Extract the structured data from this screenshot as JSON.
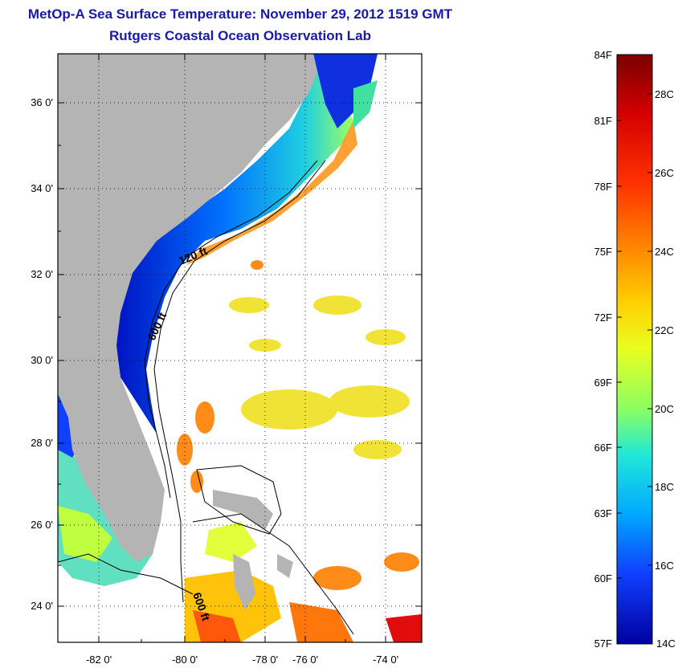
{
  "title": {
    "line1": "MetOp-A Sea Surface Temperature:  November 29, 2012 1519 GMT",
    "line2": "Rutgers Coastal Ocean Observation Lab"
  },
  "map": {
    "lat_ticks": [
      "36 0'",
      "34 0'",
      "32 0'",
      "30 0'",
      "28 0'",
      "26 0'",
      "24 0'"
    ],
    "lon_ticks": [
      "-82 0'",
      "-80 0'",
      "-78 0'",
      "-76 0'",
      "-74 0'"
    ],
    "contour_labels": [
      "120 ft",
      "600 ft",
      "600 ft"
    ],
    "colors": {
      "land": "#b4b4b4",
      "background": "#ffffff"
    }
  },
  "colorbar": {
    "fahrenheit_labels": [
      "84F",
      "81F",
      "78F",
      "75F",
      "72F",
      "69F",
      "66F",
      "63F",
      "60F",
      "57F"
    ],
    "celsius_labels": [
      "28C",
      "26C",
      "24C",
      "22C",
      "20C",
      "18C",
      "16C",
      "14C"
    ],
    "stops": [
      "#7a0000",
      "#d40000",
      "#ff3300",
      "#ff8800",
      "#ffd000",
      "#e8ff20",
      "#8cff60",
      "#20e8d8",
      "#00a8ff",
      "#1040ff",
      "#0000a0"
    ]
  }
}
